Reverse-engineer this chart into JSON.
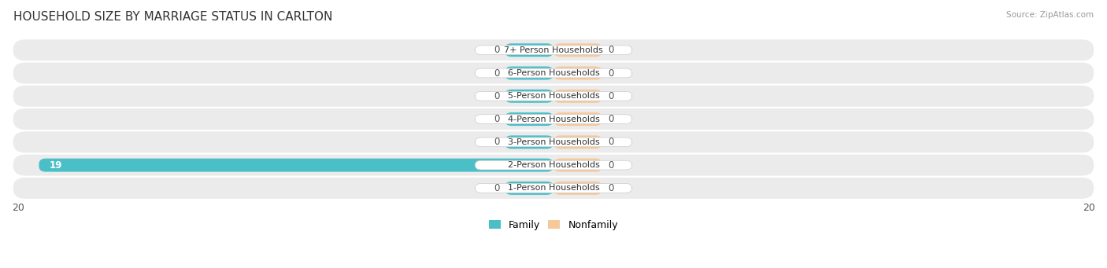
{
  "title": "HOUSEHOLD SIZE BY MARRIAGE STATUS IN CARLTON",
  "source": "Source: ZipAtlas.com",
  "categories": [
    "7+ Person Households",
    "6-Person Households",
    "5-Person Households",
    "4-Person Households",
    "3-Person Households",
    "2-Person Households",
    "1-Person Households"
  ],
  "family_values": [
    0,
    0,
    0,
    0,
    0,
    19,
    0
  ],
  "nonfamily_values": [
    0,
    0,
    0,
    0,
    0,
    0,
    0
  ],
  "family_color": "#4BBFC8",
  "nonfamily_color": "#F5C99A",
  "row_bg_color": "#EBEBEB",
  "label_bg_color": "#FFFFFF",
  "xlim": [
    -20,
    20
  ],
  "min_stub": 1.8,
  "legend_family": "Family",
  "legend_nonfamily": "Nonfamily",
  "title_fontsize": 11,
  "label_fontsize": 8.5,
  "tick_fontsize": 9,
  "bar_height": 0.58
}
